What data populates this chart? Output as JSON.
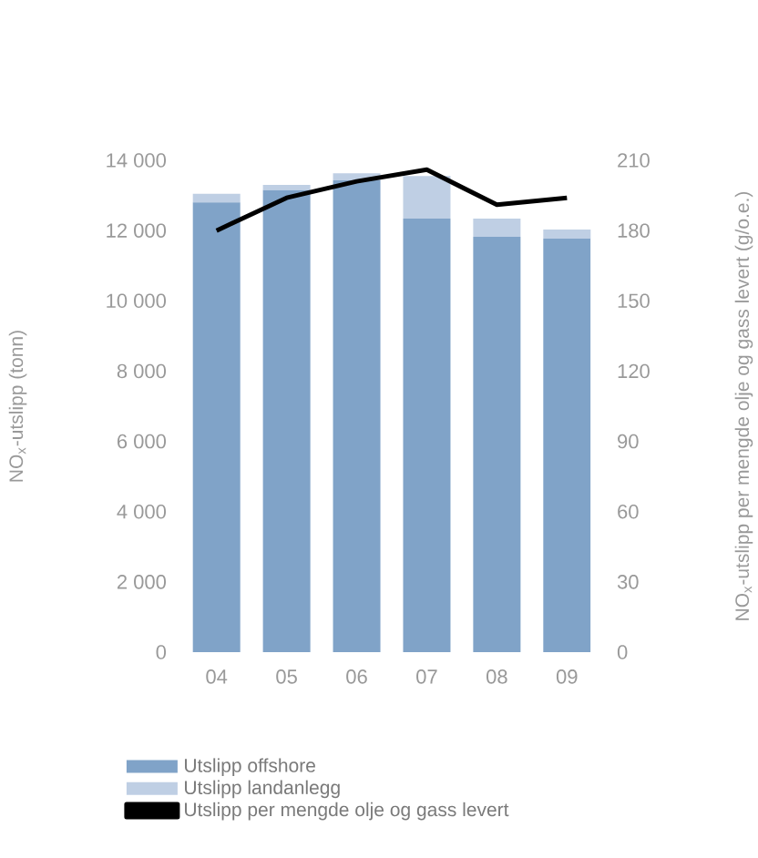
{
  "chart_data": {
    "type": "bar",
    "stacked": true,
    "categories": [
      "04",
      "05",
      "06",
      "07",
      "08",
      "09"
    ],
    "series": [
      {
        "name": "Utslipp offshore",
        "color": "#80a3c8",
        "values": [
          12800,
          13150,
          13430,
          12340,
          11820,
          11770
        ]
      },
      {
        "name": "Utslipp landanlegg",
        "color": "#bfcfe4",
        "values": [
          250,
          150,
          200,
          1210,
          520,
          260
        ]
      },
      {
        "name": "Utslipp per mengde olje og gass levert",
        "type": "line",
        "axis": "y2",
        "color": "#000000",
        "values": [
          180,
          194,
          201,
          206,
          191,
          194
        ]
      }
    ],
    "ylabel": "NO$_{x}$-utslipp (tonn)",
    "y2label": "NO$_{x}$-utslipp per mengde olje og gass levert (g/o.e.)",
    "ylim": [
      0,
      14000
    ],
    "yticks": [
      0,
      {
        "value": 2000,
        "label": "2 000"
      },
      {
        "value": 4000,
        "label": "4 000"
      },
      {
        "value": 6000,
        "label": "6 000"
      },
      {
        "value": 8000,
        "label": "8 000"
      },
      {
        "value": 10000,
        "label": "10 000"
      },
      {
        "value": 12000,
        "label": "12 000"
      },
      {
        "value": 14000,
        "label": "14 000"
      }
    ],
    "y2lim": [
      0,
      210
    ],
    "y2ticks": [
      0,
      30,
      60,
      90,
      120,
      150,
      180,
      210
    ],
    "legend": "bottom",
    "grid": false
  }
}
